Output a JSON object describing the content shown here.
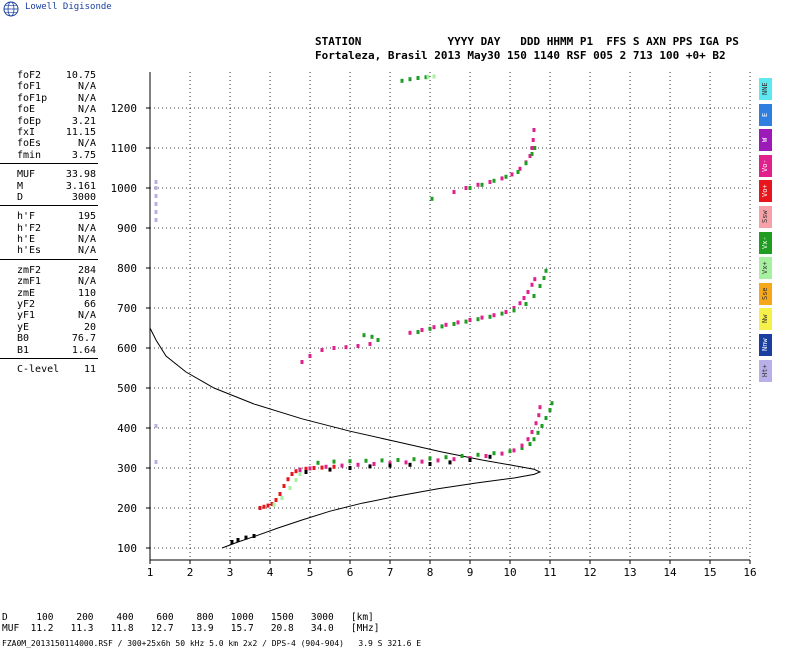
{
  "logo": {
    "text": "Lowell Digisonde",
    "icon": "globe-icon"
  },
  "header": {
    "line1": "STATION             YYYY DAY   DDD HHMM P1  FFS S AXN PPS IGA PS",
    "line2": "Fortaleza, Brasil 2013 May30 150 1140 RSF 005 2 713 100 +0+ B2"
  },
  "params": {
    "groups": [
      [
        [
          "foF2",
          "10.75"
        ],
        [
          "foF1",
          "N/A"
        ],
        [
          "foF1p",
          "N/A"
        ],
        [
          "foE",
          "N/A"
        ],
        [
          "foEp",
          "3.21"
        ],
        [
          "fxI",
          "11.15"
        ],
        [
          "foEs",
          "N/A"
        ],
        [
          "fmin",
          "3.75"
        ]
      ],
      [
        [
          "MUF",
          "33.98"
        ],
        [
          "M",
          "3.161"
        ],
        [
          "D",
          "3000"
        ]
      ],
      [
        [
          "h'F",
          "195"
        ],
        [
          "h'F2",
          "N/A"
        ],
        [
          "h'E",
          "N/A"
        ],
        [
          "h'Es",
          "N/A"
        ]
      ],
      [
        [
          "zmF2",
          "284"
        ],
        [
          "zmF1",
          "N/A"
        ],
        [
          "zmE",
          "110"
        ],
        [
          "yF2",
          "66"
        ],
        [
          "yF1",
          "N/A"
        ],
        [
          "yE",
          "20"
        ],
        [
          "B0",
          "76.7"
        ],
        [
          "B1",
          "1.64"
        ]
      ],
      [
        [
          "C-level",
          "11"
        ]
      ]
    ]
  },
  "legend": [
    {
      "label": "NNE",
      "color": "#5ee8f0"
    },
    {
      "label": "E",
      "color": "#2f7fe0"
    },
    {
      "label": "W",
      "color": "#9b1ab8"
    },
    {
      "label": "Vo-",
      "color": "#e0208c"
    },
    {
      "label": "Vo+",
      "color": "#e8161c"
    },
    {
      "label": "Ssw",
      "color": "#f6a0a8"
    },
    {
      "label": "Vx-",
      "color": "#1f9c22"
    },
    {
      "label": "Vx+",
      "color": "#a6f0a0"
    },
    {
      "label": "Sse",
      "color": "#f7a81a"
    },
    {
      "label": "Nw",
      "color": "#f6f04a"
    },
    {
      "label": "Nnw",
      "color": "#1a3fa0"
    },
    {
      "label": "Ht+",
      "color": "#b8b0e8"
    }
  ],
  "bottom": {
    "row1": "D     100    200    400    600    800   1000   1500   3000   [km]",
    "row2": "MUF  11.2   11.3   11.8   12.7   13.9   15.7   20.8   34.0   [MHz]",
    "filename": "FZA0M_2013150114000.RSF / 300+25x6h 50 kHz 5.0 km 2x2 / DPS-4 (904-904)   3.9 S 321.6 E"
  },
  "chart_data": {
    "type": "scatter",
    "title": "",
    "xlabel": "",
    "ylabel": "",
    "xlim": [
      1,
      16
    ],
    "ylim": [
      70,
      1290
    ],
    "x_ticks": [
      1,
      2,
      3,
      4,
      5,
      6,
      7,
      8,
      9,
      10,
      11,
      12,
      13,
      14,
      15,
      16
    ],
    "y_ticks": [
      100,
      200,
      300,
      400,
      500,
      600,
      700,
      800,
      900,
      1000,
      1100,
      1200
    ],
    "grid": true,
    "series": [
      {
        "color": "#e8161c",
        "points": [
          [
            3.75,
            200
          ],
          [
            3.85,
            203
          ],
          [
            3.95,
            206
          ],
          [
            4.05,
            210
          ],
          [
            4.15,
            220
          ],
          [
            4.25,
            235
          ],
          [
            4.35,
            255
          ],
          [
            4.45,
            272
          ],
          [
            4.55,
            285
          ],
          [
            4.65,
            292
          ],
          [
            4.75,
            296
          ],
          [
            4.9,
            298
          ],
          [
            5.1,
            300
          ],
          [
            5.3,
            301
          ],
          [
            5.6,
            303
          ]
        ]
      },
      {
        "color": "#1f9c22",
        "points": [
          [
            5.2,
            313
          ],
          [
            5.6,
            316
          ],
          [
            6.0,
            317
          ],
          [
            6.4,
            318
          ],
          [
            6.8,
            319
          ],
          [
            7.2,
            320
          ],
          [
            7.6,
            322
          ],
          [
            8.0,
            324
          ],
          [
            8.4,
            327
          ],
          [
            8.8,
            330
          ],
          [
            9.2,
            333
          ],
          [
            9.6,
            337
          ],
          [
            10.0,
            342
          ],
          [
            10.3,
            350
          ],
          [
            10.5,
            360
          ],
          [
            10.6,
            372
          ],
          [
            10.7,
            388
          ],
          [
            10.8,
            405
          ],
          [
            10.9,
            425
          ],
          [
            11.0,
            445
          ],
          [
            11.05,
            462
          ]
        ]
      },
      {
        "color": "#e0208c",
        "points": [
          [
            4.75,
            295
          ],
          [
            5.0,
            299
          ],
          [
            5.4,
            303
          ],
          [
            5.8,
            306
          ],
          [
            6.2,
            308
          ],
          [
            6.6,
            310
          ],
          [
            7.0,
            312
          ],
          [
            7.4,
            314
          ],
          [
            7.8,
            316
          ],
          [
            8.2,
            319
          ],
          [
            8.6,
            322
          ],
          [
            9.0,
            325
          ],
          [
            9.4,
            330
          ],
          [
            9.8,
            336
          ],
          [
            10.1,
            344
          ],
          [
            10.3,
            356
          ],
          [
            10.45,
            372
          ],
          [
            10.55,
            390
          ],
          [
            10.65,
            412
          ],
          [
            10.72,
            432
          ],
          [
            10.75,
            452
          ]
        ]
      },
      {
        "color": "#a6f0a0",
        "points": [
          [
            4.1,
            208
          ],
          [
            4.3,
            225
          ],
          [
            4.5,
            250
          ],
          [
            4.65,
            270
          ],
          [
            4.75,
            285
          ]
        ]
      },
      {
        "color": "#e0208c",
        "points": [
          [
            7.5,
            638
          ],
          [
            7.8,
            645
          ],
          [
            8.1,
            652
          ],
          [
            8.4,
            658
          ],
          [
            8.7,
            664
          ],
          [
            9.0,
            670
          ],
          [
            9.3,
            676
          ],
          [
            9.6,
            682
          ],
          [
            9.9,
            690
          ],
          [
            10.1,
            700
          ],
          [
            10.25,
            712
          ],
          [
            10.35,
            725
          ],
          [
            10.45,
            740
          ],
          [
            10.55,
            758
          ],
          [
            10.62,
            772
          ]
        ]
      },
      {
        "color": "#1f9c22",
        "points": [
          [
            7.7,
            640
          ],
          [
            8.0,
            648
          ],
          [
            8.3,
            654
          ],
          [
            8.6,
            660
          ],
          [
            8.9,
            666
          ],
          [
            9.2,
            672
          ],
          [
            9.5,
            678
          ],
          [
            9.8,
            686
          ],
          [
            10.1,
            694
          ],
          [
            10.4,
            710
          ],
          [
            10.6,
            730
          ],
          [
            10.75,
            755
          ],
          [
            10.85,
            775
          ],
          [
            10.9,
            793
          ]
        ]
      },
      {
        "color": "#e0208c",
        "points": [
          [
            4.8,
            565
          ],
          [
            5.0,
            580
          ],
          [
            5.3,
            595
          ],
          [
            5.6,
            600
          ],
          [
            5.9,
            602
          ],
          [
            6.2,
            605
          ],
          [
            6.5,
            610
          ]
        ]
      },
      {
        "color": "#1f9c22",
        "points": [
          [
            6.35,
            632
          ],
          [
            6.55,
            628
          ],
          [
            6.7,
            620
          ]
        ]
      },
      {
        "color": "#e0208c",
        "points": [
          [
            8.6,
            990
          ],
          [
            8.9,
            1000
          ],
          [
            9.2,
            1008
          ],
          [
            9.5,
            1015
          ],
          [
            9.8,
            1024
          ],
          [
            10.05,
            1034
          ],
          [
            10.25,
            1048
          ],
          [
            10.4,
            1064
          ],
          [
            10.5,
            1080
          ],
          [
            10.55,
            1100
          ],
          [
            10.58,
            1120
          ],
          [
            10.6,
            1145
          ]
        ]
      },
      {
        "color": "#1f9c22",
        "points": [
          [
            9.0,
            1000
          ],
          [
            9.3,
            1008
          ],
          [
            9.6,
            1018
          ],
          [
            9.9,
            1028
          ],
          [
            10.2,
            1040
          ],
          [
            10.4,
            1062
          ],
          [
            10.55,
            1085
          ],
          [
            10.62,
            1100
          ]
        ]
      },
      {
        "color": "#1f9c22",
        "points": [
          [
            7.3,
            1268
          ],
          [
            7.5,
            1272
          ],
          [
            7.7,
            1275
          ],
          [
            7.9,
            1277
          ]
        ]
      },
      {
        "color": "#a6f0a0",
        "points": [
          [
            7.95,
            1278
          ],
          [
            8.1,
            1279
          ]
        ]
      },
      {
        "color": "#1f9c22",
        "points": [
          [
            8.05,
            973
          ]
        ]
      },
      {
        "color": "#b8b0e8",
        "points": [
          [
            1.15,
            920
          ],
          [
            1.15,
            940
          ],
          [
            1.15,
            960
          ],
          [
            1.15,
            980
          ],
          [
            1.15,
            1000
          ],
          [
            1.15,
            1015
          ],
          [
            1.15,
            405
          ],
          [
            1.15,
            315
          ]
        ]
      },
      {
        "color": "#000000",
        "points": [
          [
            3.05,
            115
          ],
          [
            3.2,
            120
          ],
          [
            3.4,
            126
          ],
          [
            3.6,
            130
          ],
          [
            4.9,
            290
          ],
          [
            5.5,
            296
          ],
          [
            6.0,
            300
          ],
          [
            6.5,
            304
          ],
          [
            7.0,
            306
          ],
          [
            7.5,
            308
          ],
          [
            8.0,
            310
          ],
          [
            8.5,
            314
          ],
          [
            9.0,
            320
          ],
          [
            9.5,
            328
          ]
        ]
      }
    ],
    "profile_curve": [
      [
        2.8,
        100
      ],
      [
        3.2,
        115
      ],
      [
        3.7,
        132
      ],
      [
        4.2,
        150
      ],
      [
        4.8,
        170
      ],
      [
        5.5,
        192
      ],
      [
        6.3,
        212
      ],
      [
        7.2,
        230
      ],
      [
        8.2,
        248
      ],
      [
        9.2,
        263
      ],
      [
        10.1,
        275
      ],
      [
        10.6,
        284
      ],
      [
        10.75,
        290
      ],
      [
        10.6,
        297
      ],
      [
        10.1,
        306
      ],
      [
        9.3,
        320
      ],
      [
        8.3,
        340
      ],
      [
        7.2,
        365
      ],
      [
        6.0,
        392
      ],
      [
        4.8,
        423
      ],
      [
        3.6,
        460
      ],
      [
        2.6,
        500
      ],
      [
        1.9,
        540
      ],
      [
        1.4,
        580
      ],
      [
        1.15,
        620
      ],
      [
        1.0,
        650
      ]
    ]
  }
}
